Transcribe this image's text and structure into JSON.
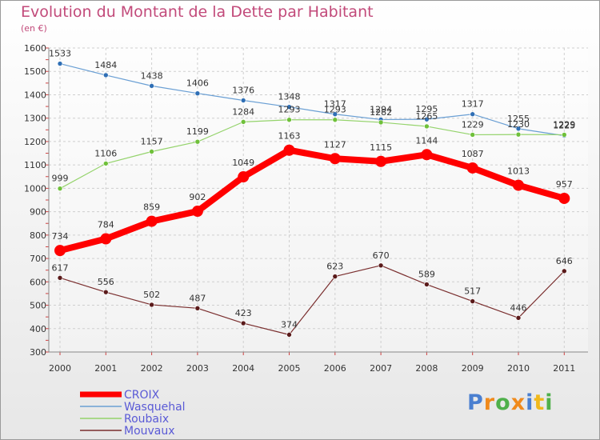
{
  "header": {
    "title": "Evolution du Montant de la Dette par Habitant",
    "subtitle": "(en €)"
  },
  "logo": {
    "letters": [
      "P",
      "r",
      "o",
      "x",
      "i",
      "t",
      "i"
    ],
    "colors": [
      "#4a7fd0",
      "#f08a1c",
      "#4fb04b",
      "#f08a1c",
      "#4a7fd0",
      "#f0b81c",
      "#4fb04b"
    ]
  },
  "chart_data": {
    "type": "line",
    "x": [
      "2000",
      "2001",
      "2002",
      "2003",
      "2004",
      "2005",
      "2006",
      "2007",
      "2008",
      "2009",
      "2010",
      "2011"
    ],
    "ylim": [
      300,
      1600
    ],
    "yticks": [
      300,
      400,
      500,
      600,
      700,
      800,
      900,
      1000,
      1100,
      1200,
      1300,
      1400,
      1500,
      1600
    ],
    "grid": true,
    "legend_position": "bottom-left",
    "series": [
      {
        "name": "CROIX",
        "color": "#ff0000",
        "values": [
          734,
          784,
          859,
          902,
          1049,
          1163,
          1127,
          1115,
          1144,
          1087,
          1013,
          957
        ]
      },
      {
        "name": "Wasquehal",
        "color": "#6a9fd4",
        "marker": "#2f6fb5",
        "values": [
          1533,
          1484,
          1438,
          1406,
          1376,
          1348,
          1317,
          1294,
          1295,
          1317,
          1255,
          1225
        ]
      },
      {
        "name": "Roubaix",
        "color": "#94d36b",
        "marker": "#6fc03a",
        "values": [
          999,
          1106,
          1157,
          1199,
          1284,
          1293,
          1293,
          1282,
          1265,
          1229,
          1230,
          1229
        ]
      },
      {
        "name": "Mouvaux",
        "color": "#7a2e2e",
        "marker": "#5a1a1a",
        "values": [
          617,
          556,
          502,
          487,
          423,
          374,
          623,
          670,
          589,
          517,
          446,
          646
        ]
      }
    ]
  }
}
